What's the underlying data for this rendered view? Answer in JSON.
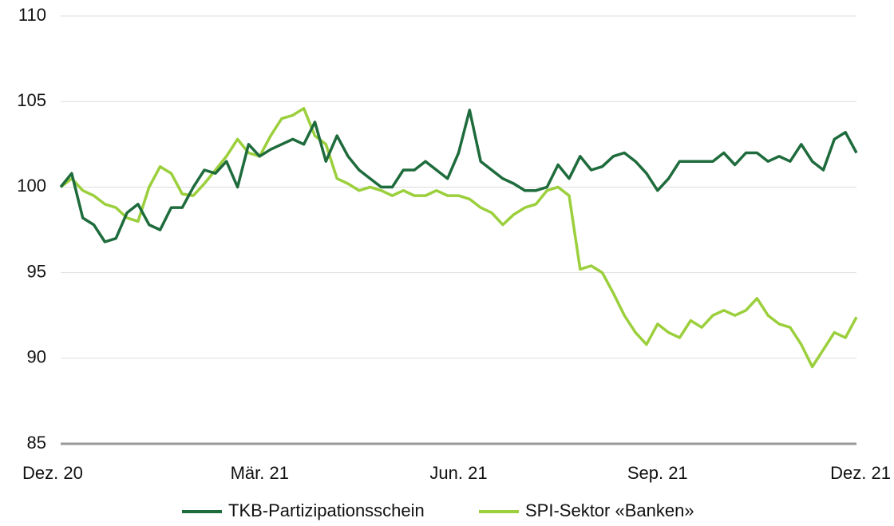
{
  "chart_data": {
    "type": "line",
    "categories": [
      "Dez. 20",
      null,
      null,
      null,
      null,
      null,
      null,
      null,
      null,
      null,
      null,
      null,
      null,
      null,
      null,
      null,
      null,
      null,
      "Mär. 21",
      null,
      null,
      null,
      null,
      null,
      null,
      null,
      null,
      null,
      null,
      null,
      null,
      null,
      null,
      null,
      null,
      null,
      "Jun. 21",
      null,
      null,
      null,
      null,
      null,
      null,
      null,
      null,
      null,
      null,
      null,
      null,
      null,
      null,
      null,
      null,
      null,
      "Sep. 21",
      null,
      null,
      null,
      null,
      null,
      null,
      null,
      null,
      null,
      null,
      null,
      null,
      null,
      null,
      null,
      null,
      null,
      "Dez. 21"
    ],
    "series": [
      {
        "name": "TKB-Partizipationsschein",
        "color": "#1e6b3c",
        "values": [
          100,
          100.8,
          98.2,
          97.8,
          96.8,
          97,
          98.5,
          99,
          97.8,
          97.5,
          98.8,
          98.8,
          100,
          101,
          100.8,
          101.5,
          100,
          102.5,
          101.8,
          102.2,
          102.5,
          102.8,
          102.5,
          103.8,
          101.5,
          103,
          101.8,
          101,
          100.5,
          100,
          100,
          101,
          101,
          101.5,
          101,
          100.5,
          102,
          104.5,
          101.5,
          101,
          100.5,
          100.2,
          99.8,
          99.8,
          100,
          101.3,
          100.5,
          101.8,
          101,
          101.2,
          101.8,
          102,
          101.5,
          100.8,
          99.8,
          100.5,
          101.5,
          101.5,
          101.5,
          101.5,
          102,
          101.3,
          102,
          102,
          101.5,
          101.8,
          101.5,
          102.5,
          101.5,
          101,
          102.8,
          103.2,
          102
        ]
      },
      {
        "name": "SPI-Sektor «Banken»",
        "color": "#9bcf3c",
        "values": [
          100,
          100.5,
          99.8,
          99.5,
          99,
          98.8,
          98.2,
          98,
          100,
          101.2,
          100.8,
          99.6,
          99.5,
          100.2,
          101,
          101.8,
          102.8,
          102,
          101.8,
          103,
          104,
          104.2,
          104.6,
          103,
          102.5,
          100.5,
          100.2,
          99.8,
          100,
          99.8,
          99.5,
          99.8,
          99.5,
          99.5,
          99.8,
          99.5,
          99.5,
          99.3,
          98.8,
          98.5,
          97.8,
          98.4,
          98.8,
          99,
          99.8,
          100,
          99.5,
          95.2,
          95.4,
          95,
          93.8,
          92.5,
          91.5,
          90.8,
          92,
          91.5,
          91.2,
          92.2,
          91.8,
          92.5,
          92.8,
          92.5,
          92.8,
          93.5,
          92.5,
          92,
          91.8,
          90.8,
          89.5,
          90.5,
          91.5,
          91.2,
          92.4
        ]
      }
    ],
    "ylim": [
      85,
      110
    ],
    "yticks": [
      85,
      90,
      95,
      100,
      105,
      110
    ],
    "grid": true,
    "legend": "bottom"
  }
}
